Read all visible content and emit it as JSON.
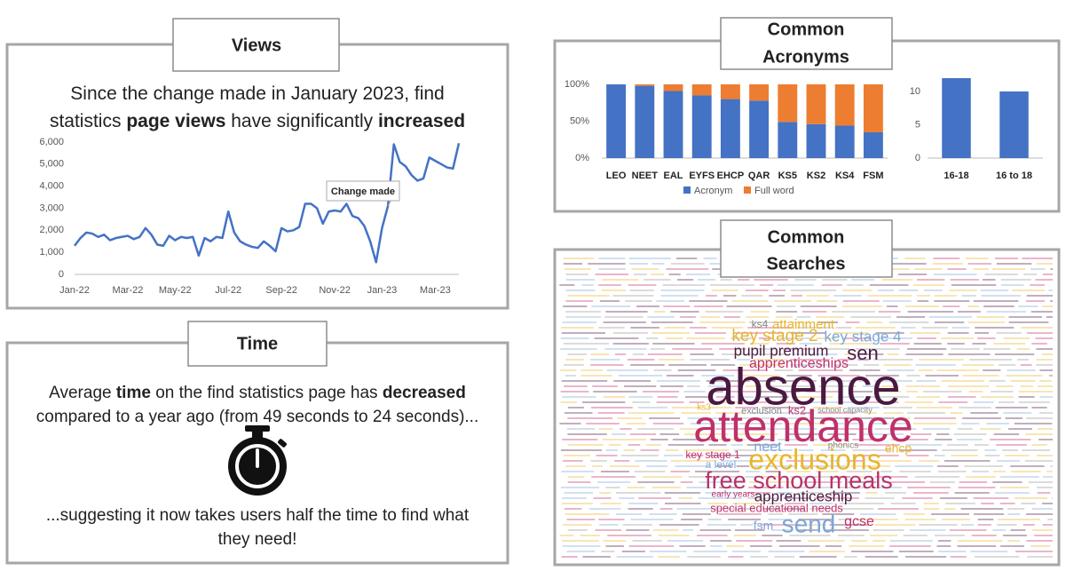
{
  "panels": {
    "views": {
      "title": [
        "Views"
      ],
      "lines": [
        [
          {
            "text": "Since the change made in January 2023, find"
          }
        ],
        [
          {
            "text": "statistics "
          },
          {
            "text": "page views",
            "bold": true
          },
          {
            "text": " have significantly "
          },
          {
            "text": "increased",
            "bold": true
          }
        ]
      ]
    },
    "time": {
      "title": [
        "Time"
      ],
      "lines": [
        [
          {
            "text": "Average "
          },
          {
            "text": "time",
            "bold": true
          },
          {
            "text": " on the find statistics page has "
          },
          {
            "text": "decreased",
            "bold": true
          }
        ],
        [
          {
            "text": "compared to a year ago (from 49 seconds to 24 seconds)..."
          }
        ]
      ],
      "after_lines": [
        [
          {
            "text": "...suggesting it now takes users half the time to find what"
          }
        ],
        [
          {
            "text": "they need!"
          }
        ]
      ]
    },
    "acronyms": {
      "title": [
        "Common",
        "Acronyms"
      ]
    },
    "searches": {
      "title": [
        "Common",
        "Searches"
      ],
      "words": [
        {
          "text": "absence",
          "color": "#4a1942"
        },
        {
          "text": "attendance",
          "color": "#c0306a"
        },
        {
          "text": "exclusions",
          "color": "#e8b52c"
        },
        {
          "text": "free school meals",
          "color": "#b8336a"
        },
        {
          "text": "send",
          "color": "#7ba7d8"
        },
        {
          "text": "key stage 2",
          "color": "#e8b52c"
        },
        {
          "text": "key stage 4",
          "color": "#7ba7d8"
        },
        {
          "text": "attainment",
          "color": "#e8b52c"
        },
        {
          "text": "pupil premium",
          "color": "#4a1942"
        },
        {
          "text": "sen",
          "color": "#4a1942"
        },
        {
          "text": "apprenticeships",
          "color": "#c0306a"
        },
        {
          "text": "neet",
          "color": "#7ba7d8"
        },
        {
          "text": "ehcp",
          "color": "#e8b52c"
        },
        {
          "text": "exclusion",
          "color": "#888888"
        },
        {
          "text": "ks2",
          "color": "#c0306a"
        },
        {
          "text": "school capacity",
          "color": "#888888"
        },
        {
          "text": "phonics",
          "color": "#888888"
        },
        {
          "text": "key stage 1",
          "color": "#c0306a"
        },
        {
          "text": "a level",
          "color": "#7ba7d8"
        },
        {
          "text": "apprenticeship",
          "color": "#4a1942"
        },
        {
          "text": "special educational needs",
          "color": "#c0306a"
        },
        {
          "text": "early years",
          "color": "#c0306a"
        },
        {
          "text": "fsm",
          "color": "#7ba7d8"
        },
        {
          "text": "gcse",
          "color": "#c0306a"
        },
        {
          "text": "ks4",
          "color": "#888888"
        },
        {
          "text": "ks3",
          "color": "#e8b52c"
        }
      ]
    }
  },
  "chart_data": [
    {
      "type": "line",
      "color": "#4472c4",
      "annotation": "Change made",
      "categories": [
        "Jan-22",
        null,
        null,
        null,
        null,
        null,
        null,
        null,
        null,
        "Mar-22",
        null,
        null,
        null,
        null,
        null,
        null,
        null,
        "May-22",
        null,
        null,
        null,
        null,
        null,
        null,
        null,
        null,
        "Jul-22",
        null,
        null,
        null,
        null,
        null,
        null,
        null,
        null,
        "Sep-22",
        null,
        null,
        null,
        null,
        null,
        null,
        null,
        null,
        "Nov-22",
        null,
        null,
        null,
        null,
        null,
        null,
        null,
        "Jan-23",
        null,
        null,
        null,
        null,
        null,
        null,
        null,
        null,
        "Mar-23",
        null,
        null,
        null,
        null
      ],
      "values": [
        1300,
        1650,
        1900,
        1850,
        1700,
        1800,
        1550,
        1650,
        1700,
        1750,
        1600,
        1700,
        2100,
        1800,
        1350,
        1300,
        1750,
        1550,
        1700,
        1650,
        1700,
        850,
        1650,
        1500,
        1700,
        1650,
        2850,
        1900,
        1500,
        1350,
        1250,
        1200,
        1500,
        1300,
        1050,
        2100,
        1950,
        2000,
        2150,
        3200,
        3200,
        3000,
        2300,
        2850,
        2900,
        2850,
        3200,
        2650,
        2550,
        2200,
        1500,
        550,
        2100,
        3100,
        5900,
        5100,
        4900,
        4500,
        4250,
        4350,
        5300,
        5150,
        5000,
        4850,
        4800,
        5950
      ],
      "ylim": [
        0,
        6000
      ],
      "yticks": [
        0,
        {
          "value": 1000,
          "label": "1,000"
        },
        {
          "value": 2000,
          "label": "2,000"
        },
        {
          "value": 3000,
          "label": "3,000"
        },
        {
          "value": 4000,
          "label": "4,000"
        },
        {
          "value": 5000,
          "label": "5,000"
        },
        {
          "value": 6000,
          "label": "6,000"
        }
      ],
      "grid": false
    },
    {
      "type": "bar",
      "stacked": true,
      "categories": [
        "LEO",
        "NEET",
        "EAL",
        "EYFS",
        "EHCP",
        "QAR",
        "KS5",
        "KS2",
        "KS4",
        "FSM"
      ],
      "series": [
        {
          "name": "Acronym",
          "color": "#4472c4",
          "values": [
            100,
            98,
            91,
            85,
            80,
            78,
            49,
            46,
            44,
            35
          ]
        },
        {
          "name": "Full word",
          "color": "#ed7d31",
          "values": [
            0,
            2,
            9,
            15,
            20,
            22,
            51,
            54,
            56,
            65
          ]
        }
      ],
      "ylim": [
        0,
        100
      ],
      "yticks": [
        {
          "value": 0,
          "label": "0%"
        },
        {
          "value": 50,
          "label": "50%"
        },
        {
          "value": 100,
          "label": "100%"
        }
      ],
      "legend": "bottom",
      "grid": false
    },
    {
      "type": "bar",
      "categories": [
        "16-18",
        "16 to 18"
      ],
      "values": [
        12,
        10
      ],
      "color": "#4472c4",
      "ylim": [
        0,
        12
      ],
      "yticks": [
        0,
        5,
        10
      ],
      "grid": false
    }
  ]
}
